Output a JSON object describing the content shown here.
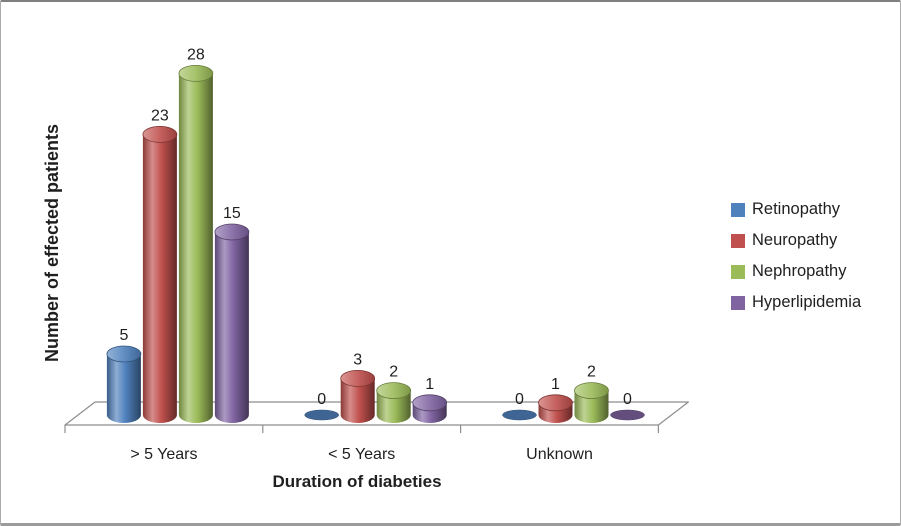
{
  "window": {
    "background": "#FFFFFF",
    "border_color": "#ABABAB"
  },
  "chart_data": {
    "type": "bar",
    "subtype": "3d-cylinder-clustered",
    "title": "",
    "xlabel": "Duration of diabeties",
    "ylabel": "Number of effected patients",
    "categories": [
      "> 5 Years",
      "< 5 Years",
      "Unknown"
    ],
    "series": [
      {
        "name": "Retinopathy",
        "color": "#4F81BD",
        "values": [
          5,
          0,
          0
        ]
      },
      {
        "name": "Neuropathy",
        "color": "#C0504D",
        "values": [
          23,
          3,
          1
        ]
      },
      {
        "name": "Nephropathy",
        "color": "#9BBB59",
        "values": [
          28,
          2,
          2
        ]
      },
      {
        "name": "Hyperlipidemia",
        "color": "#8064A2",
        "values": [
          15,
          1,
          0
        ]
      }
    ],
    "ylim": [
      0,
      28
    ],
    "data_labels": true,
    "gridlines": false,
    "legend_position": "right",
    "text_color": "#1F1F1F",
    "axis_line_color": "#8E8E8E"
  }
}
